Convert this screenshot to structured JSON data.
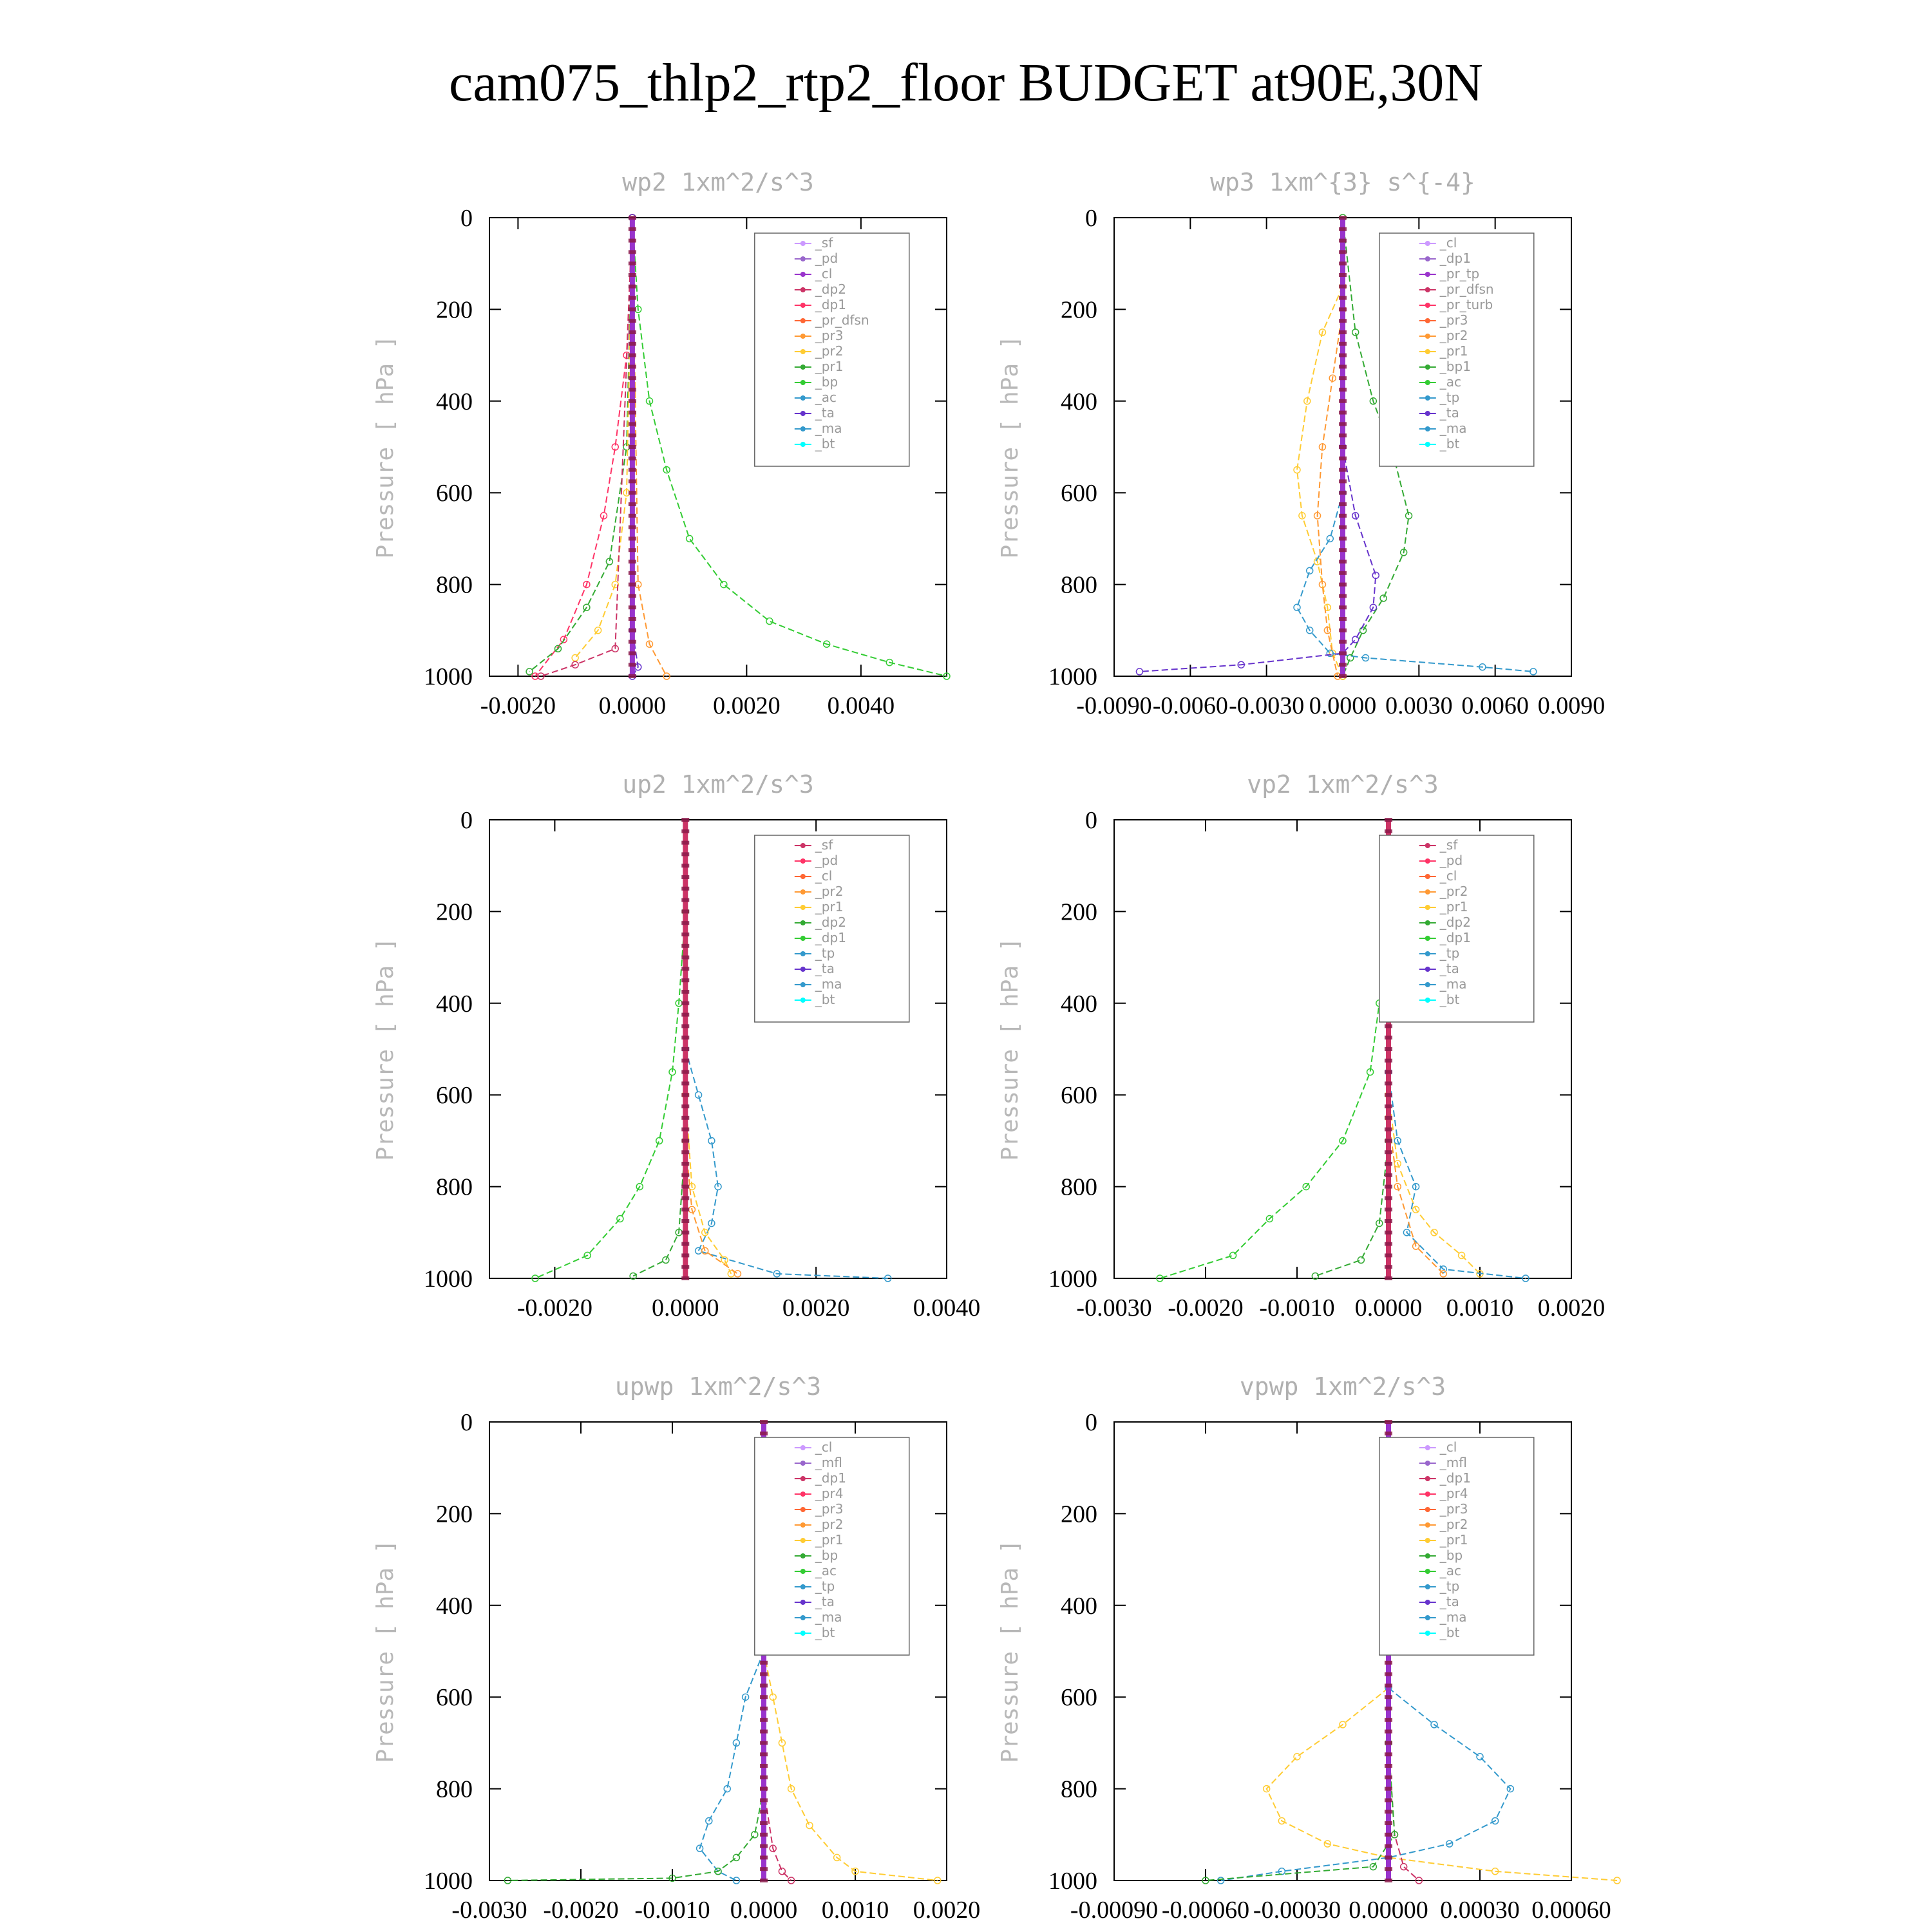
{
  "title": "cam075_thlp2_rtp2_floor  BUDGET at90E,30N",
  "colors": {
    "sf": "#cc99ff",
    "pd": "#9966cc",
    "cl": "#9933cc",
    "dp2": "#cc3366",
    "dp1": "#ff3366",
    "pr_dfsn": "#ff6633",
    "pr3": "#ff9933",
    "pr2": "#ffcc33",
    "pr1": "#33aa33",
    "bp": "#33cc33",
    "ac": "#3399cc",
    "ta": "#6633cc",
    "ma": "#3399cc",
    "bt": "#00ffff"
  },
  "chart_data": [
    {
      "id": "wp2",
      "type": "line",
      "title": "wp2   1xm^2/s^3",
      "ylabel": "Pressure [ hPa ]",
      "xlim": [
        -0.0025,
        0.0055
      ],
      "ylim": [
        1000,
        0
      ],
      "xticks": [
        "-0.0020",
        "0.0000",
        "0.0020",
        "0.0040"
      ],
      "xtick_values": [
        -0.002,
        0,
        0.002,
        0.004
      ],
      "yticks": [
        "0",
        "200",
        "400",
        "600",
        "800",
        "1000"
      ],
      "legend": [
        "_sf",
        "_pd",
        "_cl",
        "_dp2",
        "_dp1",
        "_pr_dfsn",
        "_pr3",
        "_pr2",
        "_pr1",
        "_bp",
        "_ac",
        "_ta",
        "_ma",
        "_bt"
      ],
      "legend_colors": [
        "#cc99ff",
        "#9966cc",
        "#9933cc",
        "#cc3366",
        "#ff3366",
        "#ff6633",
        "#ff9933",
        "#ffcc33",
        "#33aa33",
        "#33cc33",
        "#3399cc",
        "#6633cc",
        "#3399cc",
        "#00ffff"
      ],
      "legend_pos": "top-right",
      "series": [
        {
          "name": "_bp",
          "color": "#33cc33",
          "x": [
            0,
            0.0001,
            0.0003,
            0.0006,
            0.001,
            0.0016,
            0.0024,
            0.0034,
            0.0045,
            0.0055
          ],
          "y": [
            0,
            200,
            400,
            550,
            700,
            800,
            880,
            930,
            970,
            1000
          ]
        },
        {
          "name": "_dp1",
          "color": "#ff3366",
          "x": [
            0,
            -0.0001,
            -0.0003,
            -0.0005,
            -0.0008,
            -0.0012,
            -0.0017
          ],
          "y": [
            0,
            300,
            500,
            650,
            800,
            920,
            1000
          ]
        },
        {
          "name": "_pr1",
          "color": "#33aa33",
          "x": [
            0,
            -0.0001,
            -0.0004,
            -0.0008,
            -0.0013,
            -0.0018
          ],
          "y": [
            0,
            500,
            750,
            850,
            940,
            990
          ]
        },
        {
          "name": "_pr2",
          "color": "#ffcc33",
          "x": [
            0,
            -0.0001,
            -0.0003,
            -0.0006,
            -0.001
          ],
          "y": [
            0,
            600,
            800,
            900,
            960
          ]
        },
        {
          "name": "_pr3",
          "color": "#ff9933",
          "x": [
            0,
            0.0001,
            0.0003,
            0.0006
          ],
          "y": [
            0,
            800,
            930,
            1000
          ]
        },
        {
          "name": "_dp2",
          "color": "#cc3366",
          "x": [
            0,
            -0.0003,
            -0.001,
            -0.0016
          ],
          "y": [
            0,
            940,
            975,
            1000
          ]
        },
        {
          "name": "_ta",
          "color": "#6633cc",
          "x": [
            0,
            0,
            0.0001,
            0
          ],
          "y": [
            0,
            900,
            980,
            1000
          ]
        },
        {
          "name": "_bt",
          "color": "#9933cc",
          "x": [
            0,
            0,
            0,
            0
          ],
          "y": [
            0,
            300,
            700,
            1000
          ]
        }
      ]
    },
    {
      "id": "wp3",
      "type": "line",
      "title": "wp3   1xm^{3} s^{-4}",
      "ylabel": "Pressure [ hPa ]",
      "xlim": [
        -0.009,
        0.009
      ],
      "ylim": [
        1000,
        0
      ],
      "xticks": [
        "-0.0090",
        "-0.0060",
        "-0.0030",
        "0.0000",
        "0.0030",
        "0.0060",
        "0.0090"
      ],
      "xtick_values": [
        -0.009,
        -0.006,
        -0.003,
        0,
        0.003,
        0.006,
        0.009
      ],
      "yticks": [
        "0",
        "200",
        "400",
        "600",
        "800",
        "1000"
      ],
      "legend": [
        "_cl",
        "_dp1",
        "_pr_tp",
        "_pr_dfsn",
        "_pr_turb",
        "_pr3",
        "_pr2",
        "_pr1",
        "_bp1",
        "_ac",
        "_tp",
        "_ta",
        "_ma",
        "_bt"
      ],
      "legend_colors": [
        "#cc99ff",
        "#9966cc",
        "#9933cc",
        "#cc3366",
        "#ff3366",
        "#ff6633",
        "#ff9933",
        "#ffcc33",
        "#33aa33",
        "#33cc33",
        "#3399cc",
        "#6633cc",
        "#3399cc",
        "#00ffff"
      ],
      "legend_pos": "top-right",
      "series": [
        {
          "name": "_bp1",
          "color": "#33aa33",
          "x": [
            0,
            0.0005,
            0.0012,
            0.002,
            0.0026,
            0.0024,
            0.0016,
            0.0008,
            0.0003,
            0
          ],
          "y": [
            0,
            250,
            400,
            520,
            650,
            730,
            830,
            900,
            960,
            1000
          ]
        },
        {
          "name": "_pr1",
          "color": "#ffcc33",
          "x": [
            0,
            -0.0008,
            -0.0014,
            -0.0018,
            -0.0016,
            -0.001,
            -0.0006,
            -0.0004,
            0
          ],
          "y": [
            150,
            250,
            400,
            550,
            650,
            750,
            850,
            950,
            1000
          ]
        },
        {
          "name": "_pr2",
          "color": "#ff9933",
          "x": [
            0,
            -0.0004,
            -0.0008,
            -0.001,
            -0.0008,
            -0.0006,
            -0.0002
          ],
          "y": [
            200,
            350,
            500,
            650,
            800,
            900,
            1000
          ]
        },
        {
          "name": "_tp",
          "color": "#3399cc",
          "x": [
            0,
            -0.0005,
            -0.0013,
            -0.0018,
            -0.0013,
            -0.0005,
            0.0009,
            0.0055,
            0.0075
          ],
          "y": [
            600,
            700,
            770,
            850,
            900,
            950,
            960,
            980,
            990
          ]
        },
        {
          "name": "_ta",
          "color": "#6633cc",
          "x": [
            0,
            0.0005,
            0.0013,
            0.0012,
            0.0005,
            0,
            -0.004,
            -0.008
          ],
          "y": [
            500,
            650,
            780,
            850,
            920,
            950,
            975,
            990
          ]
        },
        {
          "name": "_bt",
          "color": "#9933cc",
          "x": [
            0,
            0,
            0,
            0
          ],
          "y": [
            0,
            300,
            700,
            1000
          ]
        }
      ]
    },
    {
      "id": "up2",
      "type": "line",
      "title": "up2   1xm^2/s^3",
      "ylabel": "Pressure [ hPa ]",
      "xlim": [
        -0.003,
        0.004
      ],
      "ylim": [
        1000,
        0
      ],
      "xticks": [
        "-0.0020",
        "0.0000",
        "0.0020",
        "0.0040"
      ],
      "xtick_values": [
        -0.002,
        0,
        0.002,
        0.004
      ],
      "yticks": [
        "0",
        "200",
        "400",
        "600",
        "800",
        "1000"
      ],
      "legend": [
        "_sf",
        "_pd",
        "_cl",
        "_pr2",
        "_pr1",
        "_dp2",
        "_dp1",
        "_tp",
        "_ta",
        "_ma",
        "_bt"
      ],
      "legend_colors": [
        "#cc3366",
        "#ff3366",
        "#ff6633",
        "#ff9933",
        "#ffcc33",
        "#33aa33",
        "#33cc33",
        "#3399cc",
        "#6633cc",
        "#3399cc",
        "#00ffff"
      ],
      "legend_pos": "top-right",
      "series": [
        {
          "name": "_dp1",
          "color": "#33cc33",
          "x": [
            0,
            -0.0001,
            -0.0002,
            -0.0004,
            -0.0007,
            -0.001,
            -0.0015,
            -0.0023
          ],
          "y": [
            200,
            400,
            550,
            700,
            800,
            870,
            950,
            1000
          ]
        },
        {
          "name": "_tp",
          "color": "#3399cc",
          "x": [
            0,
            0.0002,
            0.0004,
            0.0005,
            0.0004,
            0.0002,
            0.0014,
            0.0031
          ],
          "y": [
            500,
            600,
            700,
            800,
            880,
            940,
            990,
            1000
          ]
        },
        {
          "name": "_pr1",
          "color": "#ffcc33",
          "x": [
            0,
            0.0001,
            0.0003,
            0.0006,
            0.0007
          ],
          "y": [
            600,
            800,
            900,
            960,
            990
          ]
        },
        {
          "name": "_pr2",
          "color": "#ff9933",
          "x": [
            0,
            0.0001,
            0.0003,
            0.0008
          ],
          "y": [
            700,
            850,
            940,
            990
          ]
        },
        {
          "name": "_dp2",
          "color": "#33aa33",
          "x": [
            0,
            -0.0001,
            -0.0003,
            -0.0008
          ],
          "y": [
            700,
            900,
            960,
            995
          ]
        },
        {
          "name": "_bt",
          "color": "#cc3366",
          "x": [
            0,
            0,
            0,
            0
          ],
          "y": [
            0,
            300,
            700,
            1000
          ]
        }
      ]
    },
    {
      "id": "vp2",
      "type": "line",
      "title": "vp2   1xm^2/s^3",
      "ylabel": "Pressure [ hPa ]",
      "xlim": [
        -0.003,
        0.002
      ],
      "ylim": [
        1000,
        0
      ],
      "xticks": [
        "-0.0030",
        "-0.0020",
        "-0.0010",
        "0.0000",
        "0.0010",
        "0.0020"
      ],
      "xtick_values": [
        -0.003,
        -0.002,
        -0.001,
        0,
        0.001,
        0.002
      ],
      "yticks": [
        "0",
        "200",
        "400",
        "600",
        "800",
        "1000"
      ],
      "legend": [
        "_sf",
        "_pd",
        "_cl",
        "_pr2",
        "_pr1",
        "_dp2",
        "_dp1",
        "_tp",
        "_ta",
        "_ma",
        "_bt"
      ],
      "legend_colors": [
        "#cc3366",
        "#ff3366",
        "#ff6633",
        "#ff9933",
        "#ffcc33",
        "#33aa33",
        "#33cc33",
        "#3399cc",
        "#6633cc",
        "#3399cc",
        "#00ffff"
      ],
      "legend_pos": "top-right",
      "series": [
        {
          "name": "_dp1",
          "color": "#33cc33",
          "x": [
            0,
            -0.0001,
            -0.0002,
            -0.0005,
            -0.0009,
            -0.0013,
            -0.0017,
            -0.0025
          ],
          "y": [
            200,
            400,
            550,
            700,
            800,
            870,
            950,
            1000
          ]
        },
        {
          "name": "_pr1",
          "color": "#ffcc33",
          "x": [
            0,
            0.0001,
            0.0003,
            0.0005,
            0.0008,
            0.001
          ],
          "y": [
            600,
            750,
            850,
            900,
            950,
            990
          ]
        },
        {
          "name": "_tp",
          "color": "#3399cc",
          "x": [
            0,
            0.0001,
            0.0003,
            0.0002,
            0.0006,
            0.0015
          ],
          "y": [
            550,
            700,
            800,
            900,
            980,
            1000
          ]
        },
        {
          "name": "_pr2",
          "color": "#ff9933",
          "x": [
            0,
            0.0001,
            0.0003,
            0.0006
          ],
          "y": [
            650,
            800,
            930,
            990
          ]
        },
        {
          "name": "_dp2",
          "color": "#33aa33",
          "x": [
            0,
            -0.0001,
            -0.0003,
            -0.0008
          ],
          "y": [
            700,
            880,
            960,
            995
          ]
        },
        {
          "name": "_bt",
          "color": "#cc3366",
          "x": [
            0,
            0,
            0,
            0
          ],
          "y": [
            0,
            300,
            700,
            1000
          ]
        }
      ]
    },
    {
      "id": "upwp",
      "type": "line",
      "title": "upwp   1xm^2/s^3",
      "ylabel": "Pressure [ hPa ]",
      "xlim": [
        -0.003,
        0.002
      ],
      "ylim": [
        1000,
        0
      ],
      "xticks": [
        "-0.0030",
        "-0.0020",
        "-0.0010",
        "0.0000",
        "0.0010",
        "0.0020"
      ],
      "xtick_values": [
        -0.003,
        -0.002,
        -0.001,
        0,
        0.001,
        0.002
      ],
      "yticks": [
        "0",
        "200",
        "400",
        "600",
        "800",
        "1000"
      ],
      "legend": [
        "_cl",
        "_mfl",
        "_dp1",
        "_pr4",
        "_pr3",
        "_pr2",
        "_pr1",
        "_bp",
        "_ac",
        "_tp",
        "_ta",
        "_ma",
        "_bt"
      ],
      "legend_colors": [
        "#cc99ff",
        "#9966cc",
        "#cc3366",
        "#ff3366",
        "#ff6633",
        "#ff9933",
        "#ffcc33",
        "#33aa33",
        "#33cc33",
        "#3399cc",
        "#6633cc",
        "#3399cc",
        "#00ffff"
      ],
      "legend_pos": "top-right",
      "series": [
        {
          "name": "_tp",
          "color": "#3399cc",
          "x": [
            0,
            -0.0002,
            -0.0003,
            -0.0004,
            -0.0006,
            -0.0007,
            -0.0005,
            -0.0003
          ],
          "y": [
            500,
            600,
            700,
            800,
            870,
            930,
            980,
            1000
          ]
        },
        {
          "name": "_pr1",
          "color": "#ffcc33",
          "x": [
            0,
            0.0001,
            0.0002,
            0.0003,
            0.0005,
            0.0008,
            0.001,
            0.0019
          ],
          "y": [
            500,
            600,
            700,
            800,
            880,
            950,
            980,
            1000
          ]
        },
        {
          "name": "_bp",
          "color": "#33aa33",
          "x": [
            0,
            -0.0001,
            -0.0003,
            -0.0005,
            -0.001,
            -0.0028
          ],
          "y": [
            800,
            900,
            950,
            980,
            995,
            1000
          ]
        },
        {
          "name": "_dp1",
          "color": "#cc3366",
          "x": [
            0,
            0.0001,
            0.0002,
            0.0003
          ],
          "y": [
            800,
            930,
            980,
            1000
          ]
        },
        {
          "name": "_bt",
          "color": "#9933cc",
          "x": [
            0,
            0,
            0,
            0
          ],
          "y": [
            0,
            300,
            700,
            1000
          ]
        }
      ]
    },
    {
      "id": "vpwp",
      "type": "line",
      "title": "vpwp   1xm^2/s^3",
      "ylabel": "Pressure [ hPa ]",
      "xlim": [
        -0.0009,
        0.0006
      ],
      "ylim": [
        1000,
        0
      ],
      "xticks": [
        "-0.00090",
        "-0.00060",
        "-0.00030",
        "0.00000",
        "0.00030",
        "0.00060"
      ],
      "xtick_values": [
        -0.0009,
        -0.0006,
        -0.0003,
        0,
        0.0003,
        0.0006
      ],
      "yticks": [
        "0",
        "200",
        "400",
        "600",
        "800",
        "1000"
      ],
      "legend": [
        "_cl",
        "_mfl",
        "_dp1",
        "_pr4",
        "_pr3",
        "_pr2",
        "_pr1",
        "_bp",
        "_ac",
        "_tp",
        "_ta",
        "_ma",
        "_bt"
      ],
      "legend_colors": [
        "#cc99ff",
        "#9966cc",
        "#cc3366",
        "#ff3366",
        "#ff6633",
        "#ff9933",
        "#ffcc33",
        "#33aa33",
        "#33cc33",
        "#3399cc",
        "#6633cc",
        "#3399cc",
        "#00ffff"
      ],
      "legend_pos": "top-right",
      "series": [
        {
          "name": "_pr1",
          "color": "#ffcc33",
          "x": [
            0,
            -0.00015,
            -0.0003,
            -0.0004,
            -0.00035,
            -0.0002,
            0,
            0.00035,
            0.00075
          ],
          "y": [
            580,
            660,
            730,
            800,
            870,
            920,
            950,
            980,
            1000
          ]
        },
        {
          "name": "_tp",
          "color": "#3399cc",
          "x": [
            0,
            0.00015,
            0.0003,
            0.0004,
            0.00035,
            0.0002,
            0,
            -0.00035,
            -0.00055
          ],
          "y": [
            580,
            660,
            730,
            800,
            870,
            920,
            950,
            980,
            1000
          ]
        },
        {
          "name": "_dp1",
          "color": "#cc3366",
          "x": [
            0,
            2e-05,
            5e-05,
            0.0001
          ],
          "y": [
            700,
            900,
            970,
            1000
          ]
        },
        {
          "name": "_bp",
          "color": "#33aa33",
          "x": [
            0,
            2e-05,
            -5e-05,
            -0.0006
          ],
          "y": [
            700,
            900,
            970,
            1000
          ]
        },
        {
          "name": "_bt",
          "color": "#9933cc",
          "x": [
            0,
            0,
            0,
            0
          ],
          "y": [
            0,
            300,
            700,
            1000
          ]
        }
      ]
    }
  ]
}
